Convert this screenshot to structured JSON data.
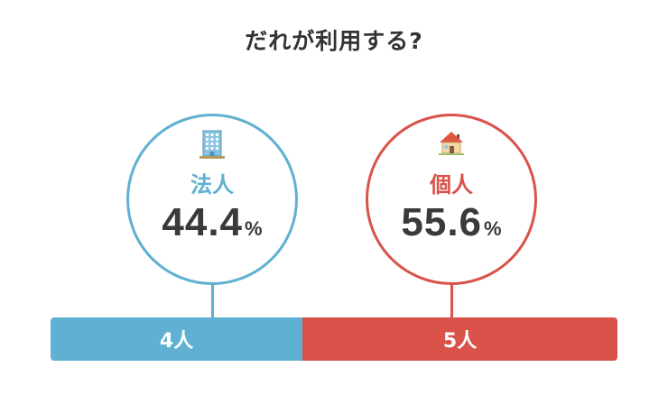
{
  "title": "だれが利用する?",
  "colors": {
    "corporate": "#5fb0d2",
    "individual": "#d9534a"
  },
  "chart_data": {
    "type": "bar",
    "stacked": true,
    "orientation": "horizontal",
    "categories": [
      "法人",
      "個人"
    ],
    "series": [
      {
        "name": "法人",
        "value": 4,
        "value_label": "4人",
        "percent": 44.4,
        "percent_num": "44.4",
        "percent_unit": "%",
        "icon": "office-building-icon",
        "color": "#5fb0d2"
      },
      {
        "name": "個人",
        "value": 5,
        "value_label": "5人",
        "percent": 55.6,
        "percent_num": "55.6",
        "percent_unit": "%",
        "icon": "house-icon",
        "color": "#d9534a"
      }
    ]
  }
}
